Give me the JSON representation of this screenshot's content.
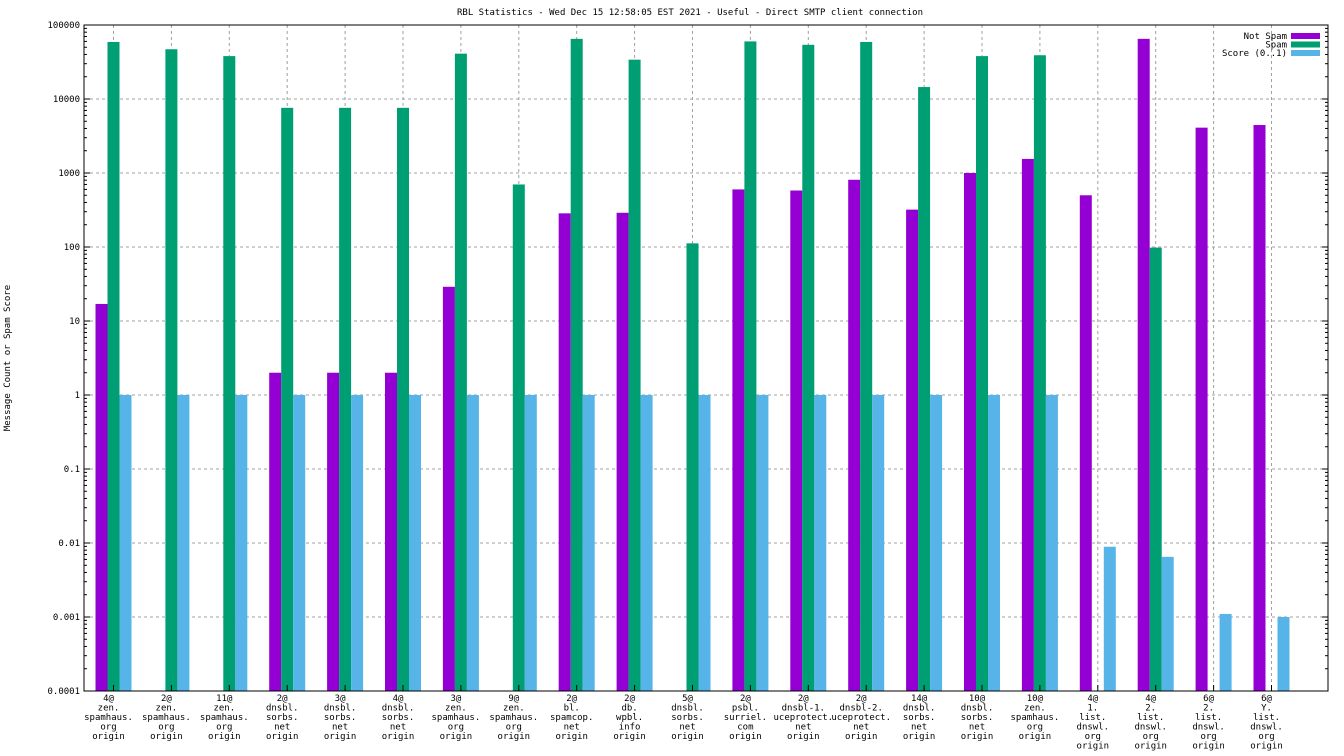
{
  "chart_data": {
    "type": "bar",
    "title": "RBL Statistics - Wed Dec 15 12:58:05 EST 2021 - Useful - Direct SMTP client connection",
    "xlabel": "",
    "ylabel": "Message Count or Spam Score",
    "yscale": "log",
    "ylim": [
      0.0001,
      100000
    ],
    "yticks": [
      "100000",
      "10000",
      "1000",
      "100",
      "10",
      "1",
      "0.1",
      "0.01",
      "0.001",
      "0.0001"
    ],
    "grid": true,
    "legend_position": "top-right",
    "categories": [
      [
        "4@",
        "zen.",
        "spamhaus.",
        "org",
        "origin"
      ],
      [
        "2@",
        "zen.",
        "spamhaus.",
        "org",
        "origin"
      ],
      [
        "11@",
        "zen.",
        "spamhaus.",
        "org",
        "origin"
      ],
      [
        "2@",
        "dnsbl.",
        "sorbs.",
        "net",
        "origin"
      ],
      [
        "3@",
        "dnsbl.",
        "sorbs.",
        "net",
        "origin"
      ],
      [
        "4@",
        "dnsbl.",
        "sorbs.",
        "net",
        "origin"
      ],
      [
        "3@",
        "zen.",
        "spamhaus.",
        "org",
        "origin"
      ],
      [
        "9@",
        "zen.",
        "spamhaus.",
        "org",
        "origin"
      ],
      [
        "2@",
        "bl.",
        "spamcop.",
        "net",
        "origin"
      ],
      [
        "2@",
        "db.",
        "wpbl.",
        "info",
        "origin"
      ],
      [
        "5@",
        "dnsbl.",
        "sorbs.",
        "net",
        "origin"
      ],
      [
        "2@",
        "psbl.",
        "surriel.",
        "com",
        "origin"
      ],
      [
        "2@",
        "dnsbl-1.",
        "uceprotect.",
        "net",
        "origin"
      ],
      [
        "2@",
        "dnsbl-2.",
        "uceprotect.",
        "net",
        "origin"
      ],
      [
        "14@",
        "dnsbl.",
        "sorbs.",
        "net",
        "origin"
      ],
      [
        "10@",
        "dnsbl.",
        "sorbs.",
        "net",
        "origin"
      ],
      [
        "10@",
        "zen.",
        "spamhaus.",
        "org",
        "origin"
      ],
      [
        "4@",
        "1.",
        "list.",
        "dnswl.",
        "org",
        "origin"
      ],
      [
        "4@",
        "2.",
        "list.",
        "dnswl.",
        "org",
        "origin"
      ],
      [
        "6@",
        "2.",
        "list.",
        "dnswl.",
        "org",
        "origin"
      ],
      [
        "6@",
        "Y.",
        "list.",
        "dnswl.",
        "org",
        "origin"
      ]
    ],
    "series": [
      {
        "name": "Not Spam",
        "color": "#9400d3",
        "values": [
          17,
          null,
          null,
          2,
          2,
          2,
          29,
          null,
          285,
          290,
          null,
          600,
          580,
          810,
          320,
          1000,
          1550,
          500,
          65000,
          4100,
          4450
        ]
      },
      {
        "name": "Spam",
        "color": "#009e73",
        "values": [
          59000,
          47000,
          38000,
          7600,
          7600,
          7600,
          41000,
          700,
          65000,
          34000,
          112,
          60000,
          54000,
          59000,
          14500,
          38000,
          39000,
          null,
          98,
          null,
          null
        ]
      },
      {
        "name": "Score (0..1)",
        "color": "#56b4e9",
        "values": [
          1,
          1,
          1,
          1,
          1,
          1,
          1,
          1,
          1,
          1,
          1,
          1,
          1,
          1,
          1,
          1,
          1,
          0.0089,
          0.0065,
          0.0011,
          0.001
        ]
      }
    ]
  }
}
